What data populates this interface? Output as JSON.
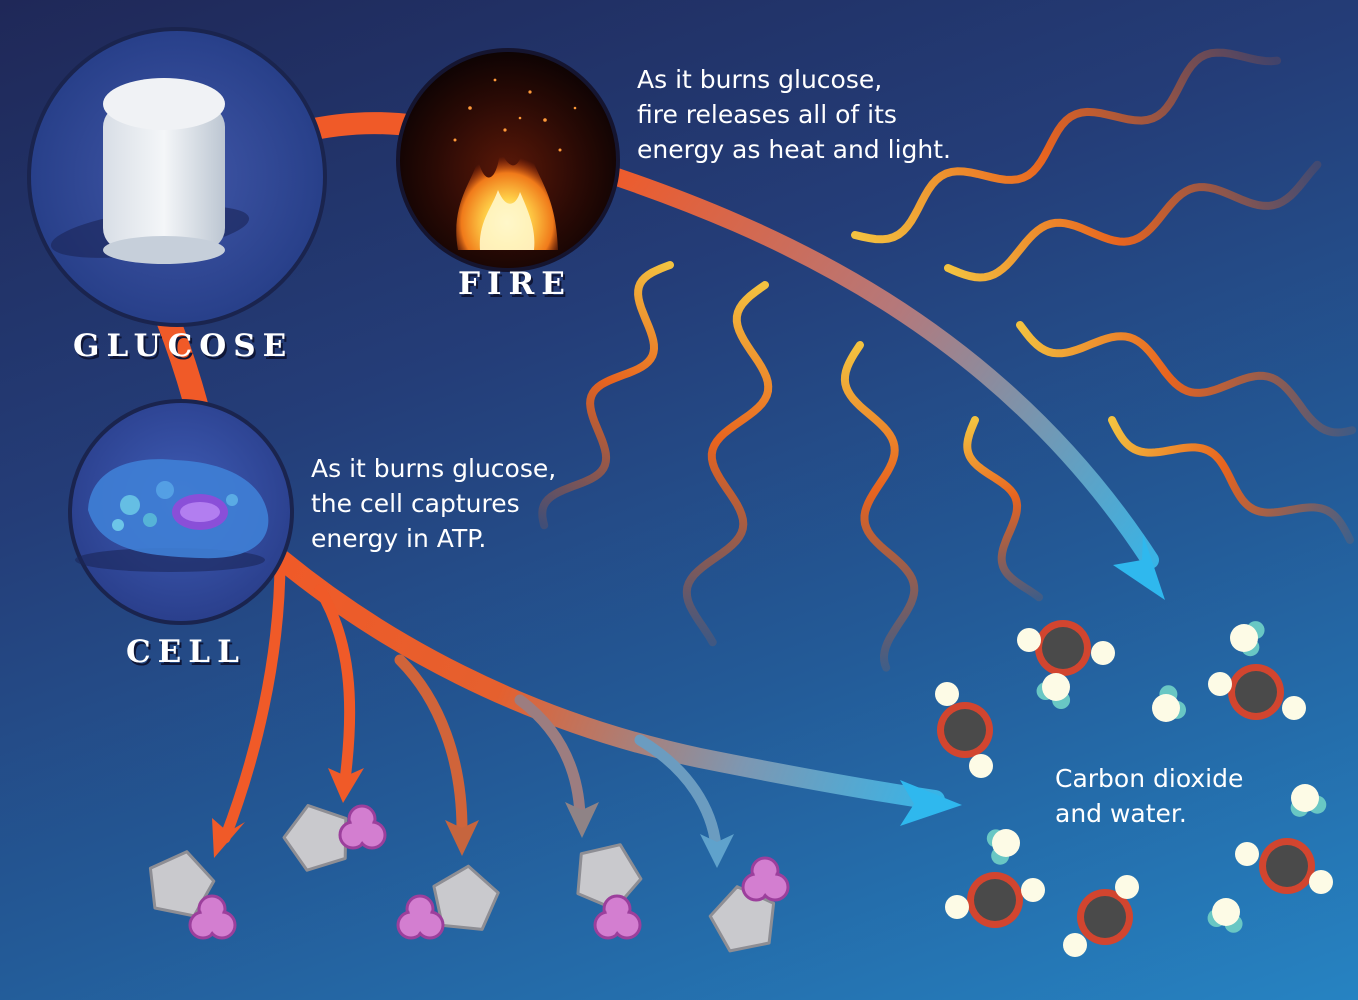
{
  "labels": {
    "glucose": "GLUCOSE",
    "fire": "FIRE",
    "cell": "CELL"
  },
  "captions": {
    "fire": [
      "As it burns glucose,",
      "fire releases all of its",
      "energy as heat and light."
    ],
    "cell": [
      "As it burns glucose,",
      "the cell captures",
      "energy in ATP."
    ],
    "products": [
      "Carbon dioxide",
      "and water."
    ]
  },
  "colors": {
    "arrow_orange": "#f05a28",
    "arrow_blue": "#2fb8ee",
    "wave_orange": "#e8641f",
    "wave_yellow": "#f3c240",
    "carbon": "#4a4a4a",
    "oxygen_ring": "#d2452f",
    "hydrogen": "#fdfbe6",
    "water_o": "#69c7c4",
    "atp_gray": "#c9c9cd",
    "atp_pink": "#d37ed0"
  },
  "icons": {
    "glucose": "marshmallow-icon",
    "fire": "flame-icon",
    "cell": "cell-icon",
    "atp": "atp-molecule-icon",
    "co2": "carbon-dioxide-molecule-icon",
    "water": "water-molecule-icon"
  }
}
